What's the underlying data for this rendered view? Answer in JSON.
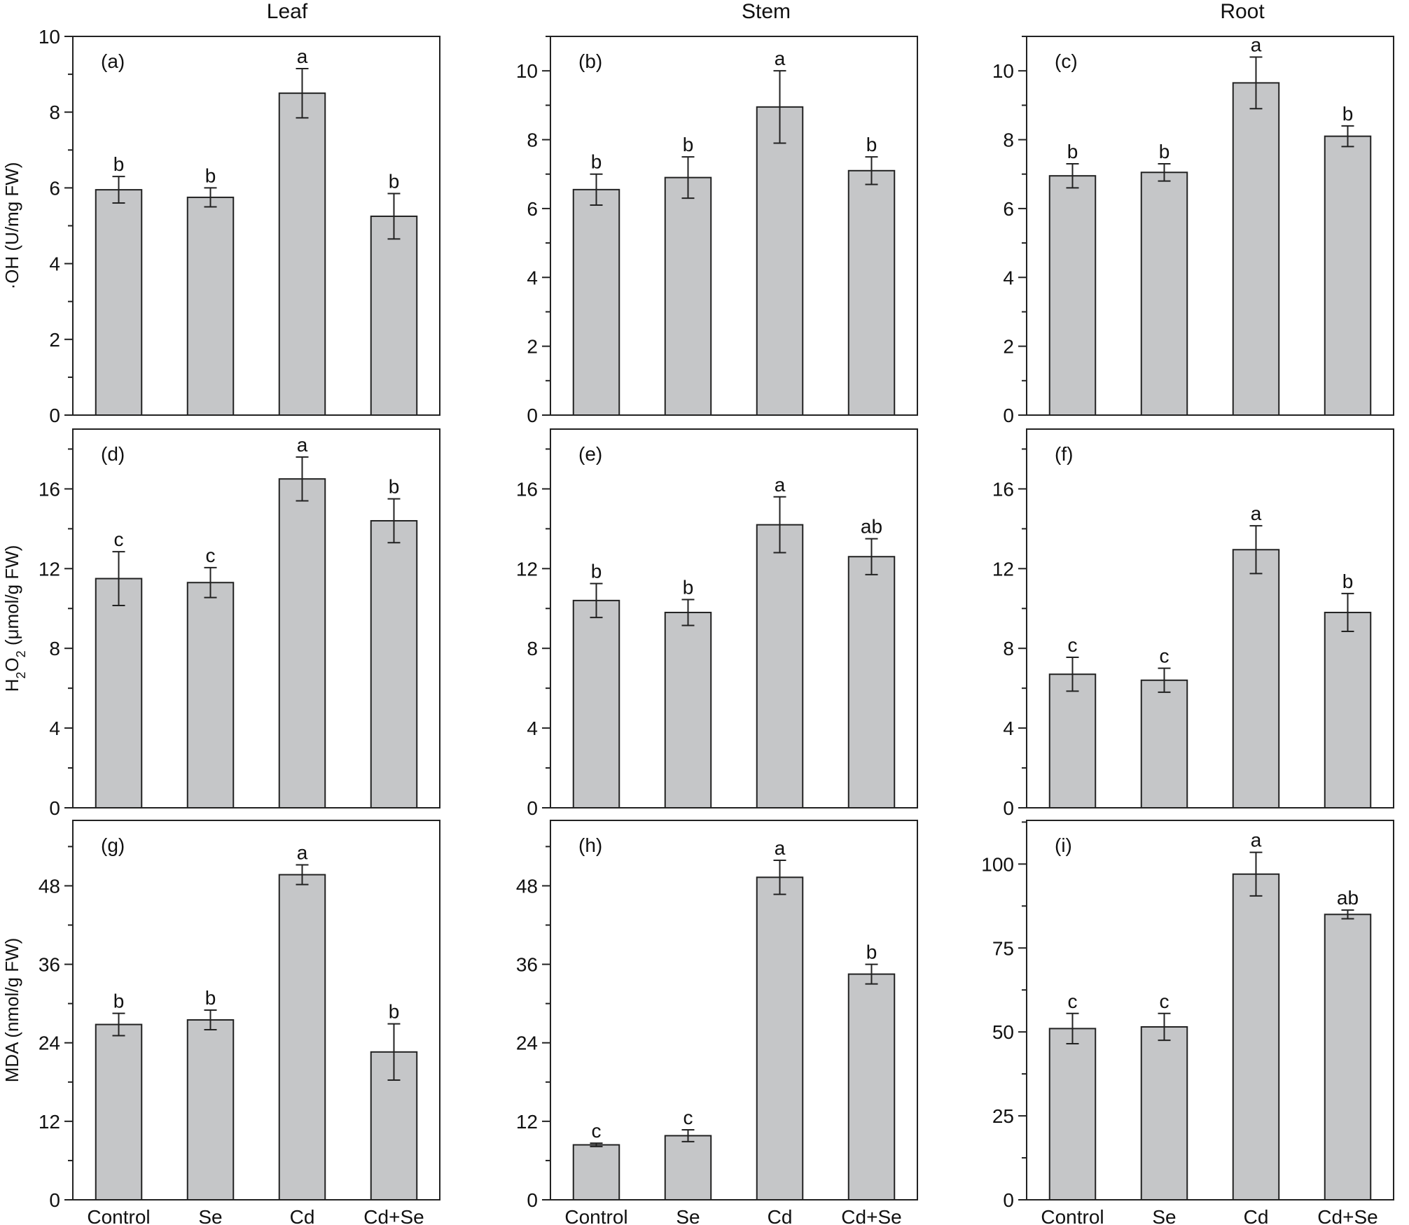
{
  "figure": {
    "column_headers": [
      "Leaf",
      "Stem",
      "Root"
    ],
    "row_ylabels": [
      "·OH (U/mg FW)",
      "H2O2 (μmol/g FW)",
      "MDA (nmol/g FW)"
    ]
  },
  "colors": {
    "bar_fill": "#c5c6c8",
    "bar_stroke": "#222222",
    "axis": "#222222"
  },
  "chart_data": [
    {
      "type": "bar",
      "panel_label": "(a)",
      "column": "Leaf",
      "ylabel": "·OH (U/mg FW)",
      "categories": [
        "Control",
        "Se",
        "Cd",
        "Cd+Se"
      ],
      "ylim": [
        0,
        10
      ],
      "yticks": [
        0,
        2,
        4,
        6,
        8,
        10
      ],
      "values": [
        5.95,
        5.75,
        8.5,
        5.25
      ],
      "errors": [
        0.35,
        0.25,
        0.65,
        0.6
      ],
      "letters": [
        "b",
        "b",
        "a",
        "b"
      ],
      "show_xticklabels": false
    },
    {
      "type": "bar",
      "panel_label": "(b)",
      "column": "Stem",
      "ylabel": "",
      "categories": [
        "Control",
        "Se",
        "Cd",
        "Cd+Se"
      ],
      "ylim": [
        0,
        11
      ],
      "yticks": [
        0,
        2,
        4,
        6,
        8,
        10
      ],
      "values": [
        6.55,
        6.9,
        8.95,
        7.1
      ],
      "errors": [
        0.45,
        0.6,
        1.05,
        0.4
      ],
      "letters": [
        "b",
        "b",
        "a",
        "b"
      ],
      "show_xticklabels": false
    },
    {
      "type": "bar",
      "panel_label": "(c)",
      "column": "Root",
      "ylabel": "",
      "categories": [
        "Control",
        "Se",
        "Cd",
        "Cd+Se"
      ],
      "ylim": [
        0,
        11
      ],
      "yticks": [
        0,
        2,
        4,
        6,
        8,
        10
      ],
      "values": [
        6.95,
        7.05,
        9.65,
        8.1
      ],
      "errors": [
        0.35,
        0.25,
        0.75,
        0.3
      ],
      "letters": [
        "b",
        "b",
        "a",
        "b"
      ],
      "show_xticklabels": false
    },
    {
      "type": "bar",
      "panel_label": "(d)",
      "column": "Leaf",
      "ylabel": "H2O2 (μmol/g FW)",
      "categories": [
        "Control",
        "Se",
        "Cd",
        "Cd+Se"
      ],
      "ylim": [
        0,
        19
      ],
      "yticks": [
        0,
        4,
        8,
        12,
        16
      ],
      "values": [
        11.5,
        11.3,
        16.5,
        14.4
      ],
      "errors": [
        1.35,
        0.75,
        1.1,
        1.1
      ],
      "letters": [
        "c",
        "c",
        "a",
        "b"
      ],
      "show_xticklabels": false
    },
    {
      "type": "bar",
      "panel_label": "(e)",
      "column": "Stem",
      "ylabel": "",
      "categories": [
        "Control",
        "Se",
        "Cd",
        "Cd+Se"
      ],
      "ylim": [
        0,
        19
      ],
      "yticks": [
        0,
        4,
        8,
        12,
        16
      ],
      "values": [
        10.4,
        9.8,
        14.2,
        12.6
      ],
      "errors": [
        0.85,
        0.65,
        1.4,
        0.9
      ],
      "letters": [
        "b",
        "b",
        "a",
        "ab"
      ],
      "show_xticklabels": false
    },
    {
      "type": "bar",
      "panel_label": "(f)",
      "column": "Root",
      "ylabel": "",
      "categories": [
        "Control",
        "Se",
        "Cd",
        "Cd+Se"
      ],
      "ylim": [
        0,
        19
      ],
      "yticks": [
        0,
        4,
        8,
        12,
        16
      ],
      "values": [
        6.7,
        6.4,
        12.95,
        9.8
      ],
      "errors": [
        0.85,
        0.6,
        1.2,
        0.95
      ],
      "letters": [
        "c",
        "c",
        "a",
        "b"
      ],
      "show_xticklabels": false
    },
    {
      "type": "bar",
      "panel_label": "(g)",
      "column": "Leaf",
      "ylabel": "MDA (nmol/g FW)",
      "categories": [
        "Control",
        "Se",
        "Cd",
        "Cd+Se"
      ],
      "ylim": [
        0,
        58
      ],
      "yticks": [
        0,
        12,
        24,
        36,
        48
      ],
      "values": [
        26.8,
        27.5,
        49.7,
        22.6
      ],
      "errors": [
        1.7,
        1.5,
        1.5,
        4.3
      ],
      "letters": [
        "b",
        "b",
        "a",
        "b"
      ],
      "show_xticklabels": true
    },
    {
      "type": "bar",
      "panel_label": "(h)",
      "column": "Stem",
      "ylabel": "",
      "categories": [
        "Control",
        "Se",
        "Cd",
        "Cd+Se"
      ],
      "ylim": [
        0,
        58
      ],
      "yticks": [
        0,
        12,
        24,
        36,
        48
      ],
      "values": [
        8.4,
        9.8,
        49.3,
        34.5
      ],
      "errors": [
        0.25,
        0.9,
        2.6,
        1.5
      ],
      "letters": [
        "c",
        "c",
        "a",
        "b"
      ],
      "show_xticklabels": true
    },
    {
      "type": "bar",
      "panel_label": "(i)",
      "column": "Root",
      "ylabel": "",
      "categories": [
        "Control",
        "Se",
        "Cd",
        "Cd+Se"
      ],
      "ylim": [
        0,
        113
      ],
      "yticks": [
        0,
        25,
        50,
        75,
        100
      ],
      "values": [
        51,
        51.5,
        97,
        85
      ],
      "errors": [
        4.5,
        4,
        6.5,
        1.3
      ],
      "letters": [
        "c",
        "c",
        "a",
        "ab"
      ],
      "show_xticklabels": true
    }
  ]
}
